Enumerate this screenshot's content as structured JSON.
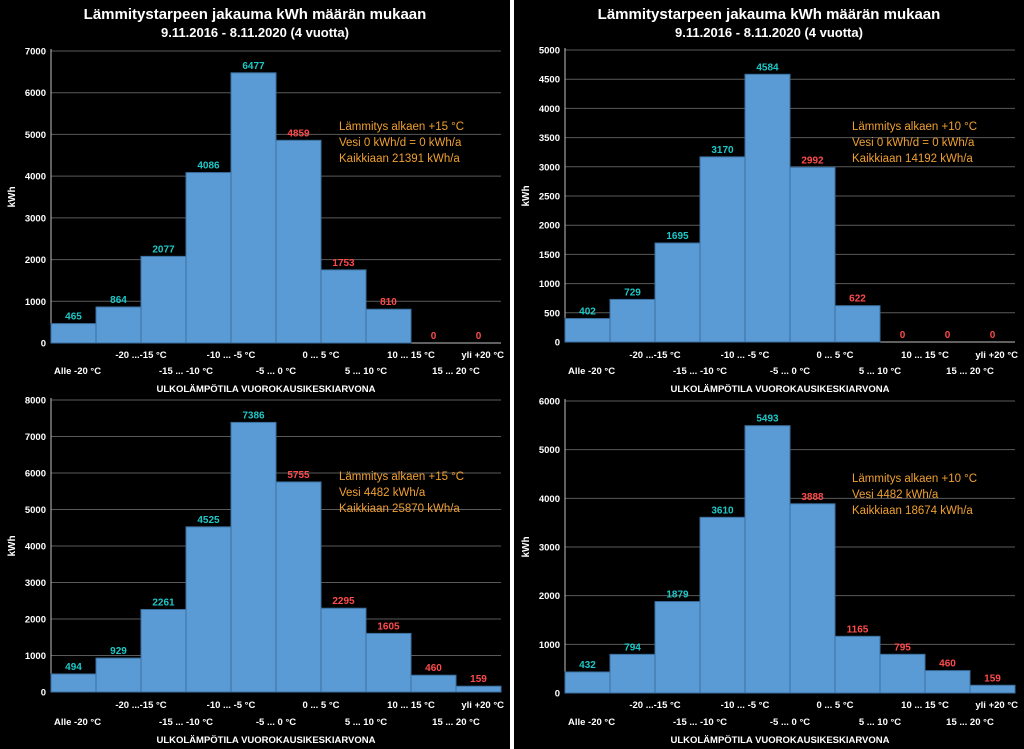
{
  "colors": {
    "background": "#000000",
    "bar_fill": "#5b9bd5",
    "bar_stroke": "#3b6f9e",
    "label_cyan": "#1ec8c8",
    "label_red": "#ff4b4b",
    "annotation": "#f0a030",
    "text": "#ffffff",
    "grid": "#5a5a5a"
  },
  "shared": {
    "categories": [
      "Alle -20 °C",
      "-20 ...-15 °C",
      "-15 ... -10 °C",
      "-10 ... -5 °C",
      "-5 ... 0 °C",
      "0 ... 5 °C",
      "5 ... 10 °C",
      "10 ... 15 °C",
      "15 ... 20 °C",
      "yli +20 °C"
    ],
    "xlabel": "ULKOLÄMPÖTILA VUOROKAUSIKESKIARVONA",
    "ylabel": "kWh"
  },
  "chart_data": [
    {
      "id": "top-left",
      "type": "bar",
      "title": "Lämmitystarpeen jakauma kWh määrän mukaan",
      "subtitle": "9.11.2016 - 8.11.2020 (4 vuotta)",
      "xlabel": "ULKOLÄMPÖTILA VUOROKAUSIKESKIARVONA",
      "ylabel": "kWh",
      "ylim": [
        0,
        7000
      ],
      "yticks": [
        0,
        1000,
        2000,
        3000,
        4000,
        5000,
        6000,
        7000
      ],
      "categories": [
        "Alle -20 °C",
        "-20 ...-15 °C",
        "-15 ... -10 °C",
        "-10 ... -5 °C",
        "-5 ... 0 °C",
        "0 ... 5 °C",
        "5 ... 10 °C",
        "10 ... 15 °C",
        "15 ... 20 °C",
        "yli +20 °C"
      ],
      "values": [
        465,
        864,
        2077,
        4086,
        6477,
        4859,
        1753,
        810,
        0,
        0
      ],
      "label_colors": [
        "cyan",
        "cyan",
        "cyan",
        "cyan",
        "cyan",
        "red",
        "red",
        "red",
        "red",
        "red"
      ],
      "annotation": [
        "Lämmitys alkaen +15 °C",
        "Vesi 0 kWh/d  = 0 kWh/a",
        "Kaikkiaan 21391 kWh/a"
      ],
      "grid": true
    },
    {
      "id": "top-right",
      "type": "bar",
      "title": "Lämmitystarpeen jakauma kWh määrän mukaan",
      "subtitle": "9.11.2016 - 8.11.2020 (4 vuotta)",
      "xlabel": "ULKOLÄMPÖTILA VUOROKAUSIKESKIARVONA",
      "ylabel": "kWh",
      "ylim": [
        0,
        5000
      ],
      "yticks": [
        0,
        500,
        1000,
        1500,
        2000,
        2500,
        3000,
        3500,
        4000,
        4500,
        5000
      ],
      "categories": [
        "Alle -20 °C",
        "-20 ...-15 °C",
        "-15 ... -10 °C",
        "-10 ... -5 °C",
        "-5 ... 0 °C",
        "0 ... 5 °C",
        "5 ... 10 °C",
        "10 ... 15 °C",
        "15 ... 20 °C",
        "yli +20 °C"
      ],
      "values": [
        402,
        729,
        1695,
        3170,
        4584,
        2992,
        622,
        0,
        0,
        0
      ],
      "label_colors": [
        "cyan",
        "cyan",
        "cyan",
        "cyan",
        "cyan",
        "red",
        "red",
        "red",
        "red",
        "red"
      ],
      "annotation": [
        "Lämmitys alkaen +10 °C",
        "Vesi 0 kWh/d  = 0 kWh/a",
        "Kaikkiaan 14192 kWh/a"
      ],
      "grid": true
    },
    {
      "id": "bottom-left",
      "type": "bar",
      "title": "",
      "subtitle": "",
      "xlabel": "ULKOLÄMPÖTILA VUOROKAUSIKESKIARVONA",
      "ylabel": "kWh",
      "ylim": [
        0,
        8000
      ],
      "yticks": [
        0,
        1000,
        2000,
        3000,
        4000,
        5000,
        6000,
        7000,
        8000
      ],
      "categories": [
        "Alle -20 °C",
        "-20 ...-15 °C",
        "-15 ... -10 °C",
        "-10 ... -5 °C",
        "-5 ... 0 °C",
        "0 ... 5 °C",
        "5 ... 10 °C",
        "10 ... 15 °C",
        "15 ... 20 °C",
        "yli +20 °C"
      ],
      "values": [
        494,
        929,
        2261,
        4525,
        7386,
        5755,
        2295,
        1605,
        460,
        159
      ],
      "label_colors": [
        "cyan",
        "cyan",
        "cyan",
        "cyan",
        "cyan",
        "red",
        "red",
        "red",
        "red",
        "red"
      ],
      "annotation": [
        "Lämmitys alkaen +15 °C",
        "Vesi 4482 kWh/a",
        "Kaikkiaan 25870 kWh/a"
      ],
      "grid": true
    },
    {
      "id": "bottom-right",
      "type": "bar",
      "title": "",
      "subtitle": "",
      "xlabel": "ULKOLÄMPÖTILA VUOROKAUSIKESKIARVONA",
      "ylabel": "kWh",
      "ylim": [
        0,
        6000
      ],
      "yticks": [
        0,
        1000,
        2000,
        3000,
        4000,
        5000,
        6000
      ],
      "categories": [
        "Alle -20 °C",
        "-20 ...-15 °C",
        "-15 ... -10 °C",
        "-10 ... -5 °C",
        "-5 ... 0 °C",
        "0 ... 5 °C",
        "5 ... 10 °C",
        "10 ... 15 °C",
        "15 ... 20 °C",
        "yli +20 °C"
      ],
      "values": [
        432,
        794,
        1879,
        3610,
        5493,
        3888,
        1165,
        795,
        460,
        159
      ],
      "label_colors": [
        "cyan",
        "cyan",
        "cyan",
        "cyan",
        "cyan",
        "red",
        "red",
        "red",
        "red",
        "red"
      ],
      "annotation": [
        "Lämmitys alkaen +10 °C",
        "Vesi 4482 kWh/a",
        "Kaikkiaan 18674 kWh/a"
      ],
      "grid": true
    }
  ]
}
